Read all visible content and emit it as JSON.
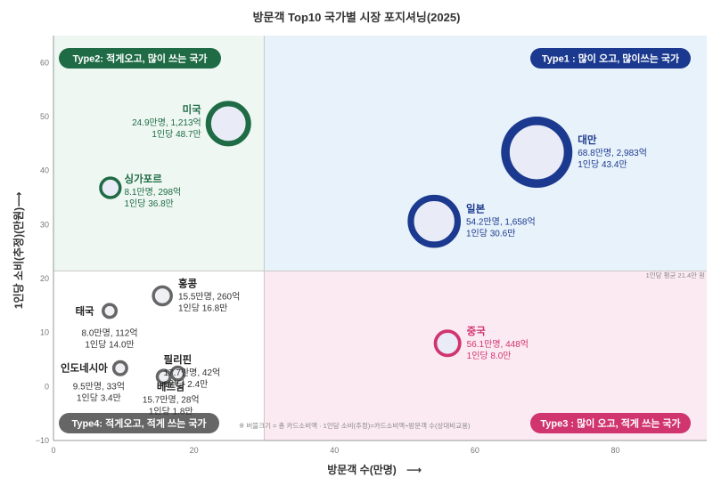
{
  "chart_data": {
    "type": "scatter",
    "title": "방문객 Top10 국가별 시장 포지셔닝(2025)",
    "xlabel": "방문객 수(만명)",
    "ylabel": "1인당 소비(추정)(만원)",
    "xlim": [
      0,
      93
    ],
    "ylim": [
      -10,
      65
    ],
    "xticks": [
      0,
      20,
      40,
      60,
      80
    ],
    "yticks": [
      -10,
      0,
      10,
      20,
      30,
      40,
      50,
      60
    ],
    "xtick_labels": [
      "0",
      "20",
      "40",
      "60",
      "80"
    ],
    "ytick_labels": [
      "−10",
      "0",
      "10",
      "20",
      "30",
      "40",
      "50",
      "60"
    ],
    "grid": false,
    "bubble_size": "total_spend",
    "quadrant_split": {
      "x": 30,
      "y": 21.4
    },
    "average_label": "1인당 평균 21.4만 원",
    "footnote": "※ 버블크기 = 총 카드소비액 · 1인당 소비(추정)=카드소비액÷방문객 수(상대비교용)",
    "quadrants": [
      {
        "id": "type1",
        "label": "Type1 : 많이 오고, 많이쓰는 국가",
        "color": "#1b3a8f",
        "bg": "#e8f2fa"
      },
      {
        "id": "type2",
        "label": "Type2: 적게오고, 많이 쓰는 국가",
        "color": "#1e6b45",
        "bg": "#eef7f1"
      },
      {
        "id": "type3",
        "label": "Type3 : 많이 오고, 적게 쓰는 국가",
        "color": "#d1356f",
        "bg": "#fbeaf1"
      },
      {
        "id": "type4",
        "label": "Type4: 적게오고, 적게 쓰는 국가",
        "color": "#666666",
        "bg": "#ffffff"
      }
    ],
    "points": [
      {
        "name": "미국",
        "x": 24.9,
        "y": 48.7,
        "size": 1213,
        "quadrant": "type2",
        "line1": "24.9만명, 1,213억",
        "line2": "1인당 48.7만"
      },
      {
        "name": "싱가포르",
        "x": 8.1,
        "y": 36.8,
        "size": 298,
        "quadrant": "type2",
        "line1": "8.1만명, 298억",
        "line2": "1인당 36.8만"
      },
      {
        "name": "대만",
        "x": 68.8,
        "y": 43.4,
        "size": 2983,
        "quadrant": "type1",
        "line1": "68.8만명, 2,983억",
        "line2": "1인당 43.4만"
      },
      {
        "name": "일본",
        "x": 54.2,
        "y": 30.6,
        "size": 1658,
        "quadrant": "type1",
        "line1": "54.2만명, 1,658억",
        "line2": "1인당 30.6만"
      },
      {
        "name": "중국",
        "x": 56.1,
        "y": 8.0,
        "size": 448,
        "quadrant": "type3",
        "line1": "56.1만명, 448억",
        "line2": "1인당 8.0만"
      },
      {
        "name": "홍콩",
        "x": 15.5,
        "y": 16.8,
        "size": 260,
        "quadrant": "type4",
        "line1": "15.5만명, 260억",
        "line2": "1인당 16.8만"
      },
      {
        "name": "태국",
        "x": 8.0,
        "y": 14.0,
        "size": 112,
        "quadrant": "type4",
        "line1": "8.0만명, 112억",
        "line2": "1인당 14.0만"
      },
      {
        "name": "인도네시아",
        "x": 9.5,
        "y": 3.4,
        "size": 33,
        "quadrant": "type4",
        "line1": "9.5만명, 33억",
        "line2": "1인당 3.4만"
      },
      {
        "name": "필리핀",
        "x": 17.7,
        "y": 2.4,
        "size": 42,
        "quadrant": "type4",
        "line1": "17.7만명, 42억",
        "line2": "1인당 2.4만"
      },
      {
        "name": "베트남",
        "x": 15.7,
        "y": 1.8,
        "size": 28,
        "quadrant": "type4",
        "line1": "15.7만명, 28억",
        "line2": "1인당 1.8만"
      }
    ]
  }
}
